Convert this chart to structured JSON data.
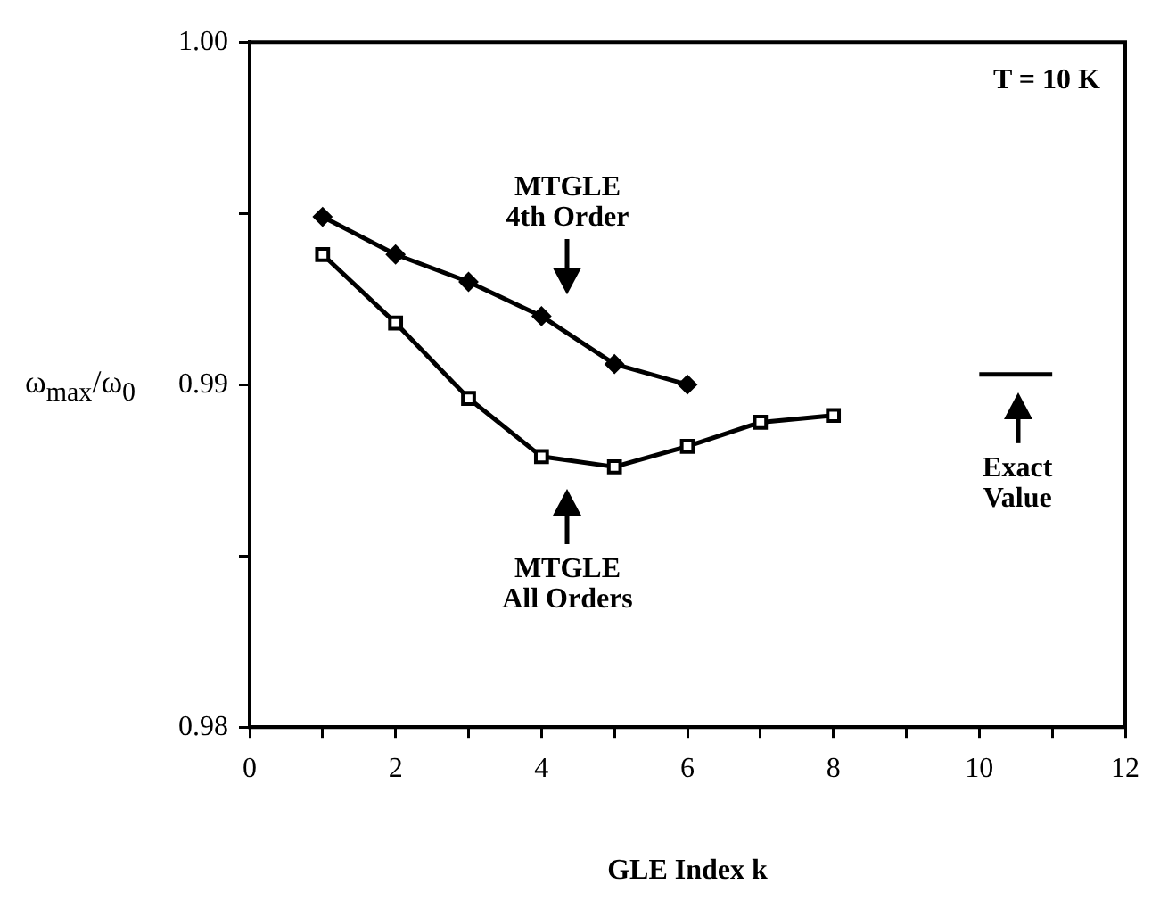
{
  "chart_data": {
    "type": "line",
    "xlabel": "GLE Index k",
    "ylabel": "ω$_{max}$/ω$_{0}$",
    "x": [
      1,
      2,
      3,
      4,
      5,
      6,
      7,
      8
    ],
    "series": [
      {
        "x": [
          1,
          2,
          3,
          4,
          5,
          6
        ],
        "values": [
          0.9949,
          0.9938,
          0.993,
          0.992,
          0.9906,
          0.99
        ],
        "color": "#000000",
        "marker": "diamond"
      },
      {
        "values": [
          0.9938,
          0.9918,
          0.9896,
          0.9879,
          0.9876,
          0.9882,
          0.9889,
          0.9891
        ],
        "color": "#000000",
        "marker": "square"
      },
      {
        "x": [
          10.0,
          11.0
        ],
        "values": [
          0.9903,
          0.9903
        ],
        "color": "#000000",
        "marker": "none"
      }
    ],
    "xlim": [
      0,
      12
    ],
    "ylim": [
      0.98,
      1.0
    ],
    "xticks": [
      0,
      {
        "value": 1,
        "label": null
      },
      2,
      {
        "value": 3,
        "label": null
      },
      4,
      {
        "value": 5,
        "label": null
      },
      6,
      {
        "value": 7,
        "label": null
      },
      8,
      {
        "value": 9,
        "label": null
      },
      10,
      {
        "value": 11,
        "label": null
      },
      12
    ],
    "yticks": [
      {
        "value": 0.98,
        "label": "0.98"
      },
      {
        "value": 0.985,
        "label": null
      },
      0.99,
      {
        "value": 0.995,
        "label": null
      },
      {
        "value": 1.0,
        "label": "1.00"
      }
    ],
    "grid": false,
    "legend": false,
    "annotations": [
      "T = 10 K",
      "MTGLE\n4th Order",
      "MTGLE\nAll Orders",
      "Exact\nValue"
    ]
  }
}
